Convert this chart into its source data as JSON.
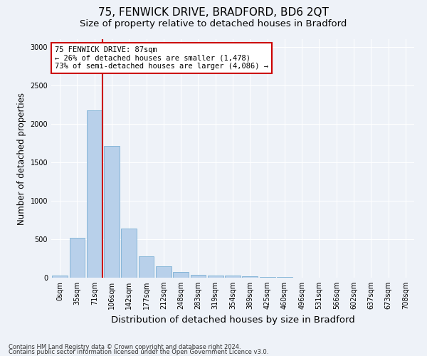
{
  "title1": "75, FENWICK DRIVE, BRADFORD, BD6 2QT",
  "title2": "Size of property relative to detached houses in Bradford",
  "xlabel": "Distribution of detached houses by size in Bradford",
  "ylabel": "Number of detached properties",
  "footer1": "Contains HM Land Registry data © Crown copyright and database right 2024.",
  "footer2": "Contains public sector information licensed under the Open Government Licence v3.0.",
  "bar_labels": [
    "0sqm",
    "35sqm",
    "71sqm",
    "106sqm",
    "142sqm",
    "177sqm",
    "212sqm",
    "248sqm",
    "283sqm",
    "319sqm",
    "354sqm",
    "389sqm",
    "425sqm",
    "460sqm",
    "496sqm",
    "531sqm",
    "566sqm",
    "602sqm",
    "637sqm",
    "673sqm",
    "708sqm"
  ],
  "bar_values": [
    25,
    520,
    2175,
    1710,
    635,
    280,
    150,
    70,
    40,
    30,
    25,
    15,
    10,
    5,
    0,
    0,
    0,
    0,
    0,
    0,
    0
  ],
  "bar_color": "#b8d0ea",
  "bar_edge_color": "#7aafd4",
  "vline_color": "#cc0000",
  "annotation_text": "75 FENWICK DRIVE: 87sqm\n← 26% of detached houses are smaller (1,478)\n73% of semi-detached houses are larger (4,086) →",
  "annotation_box_color": "#ffffff",
  "annotation_box_edge": "#cc0000",
  "ylim": [
    0,
    3100
  ],
  "yticks": [
    0,
    500,
    1000,
    1500,
    2000,
    2500,
    3000
  ],
  "background_color": "#eef2f8",
  "title1_fontsize": 11,
  "title2_fontsize": 9.5,
  "ylabel_fontsize": 8.5,
  "xlabel_fontsize": 9.5,
  "tick_fontsize": 7,
  "footer_fontsize": 6,
  "annotation_fontsize": 7.5
}
